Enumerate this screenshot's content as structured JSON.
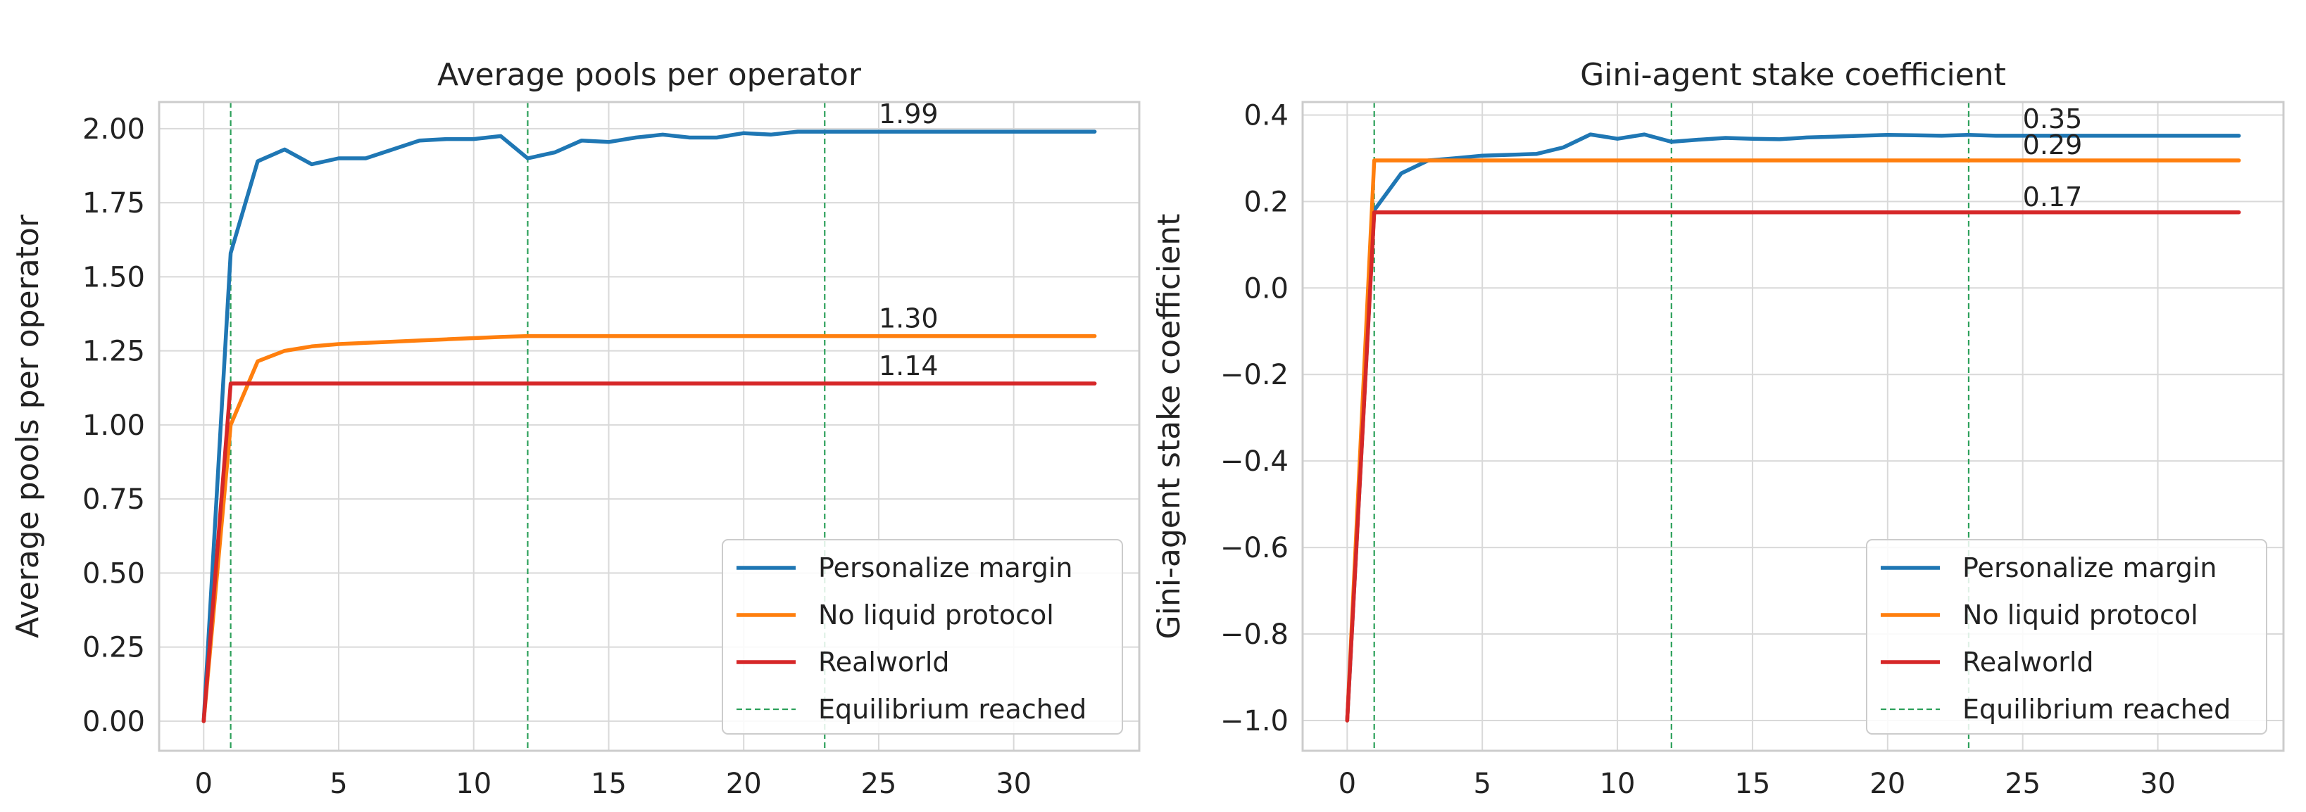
{
  "chart_data": [
    {
      "type": "line",
      "title": "Average pools per operator",
      "xlabel": "",
      "ylabel": "Average pools per operator",
      "xlim": [
        -1.65,
        34.65
      ],
      "ylim": [
        -0.1,
        2.09
      ],
      "xticks": [
        0,
        5,
        10,
        15,
        20,
        25,
        30
      ],
      "xtick_labels": [
        "0",
        "5",
        "10",
        "15",
        "20",
        "25",
        "30"
      ],
      "yticks": [
        0,
        0.25,
        0.5,
        0.75,
        1.0,
        1.25,
        1.5,
        1.75,
        2.0
      ],
      "ytick_labels": [
        "0.00",
        "0.25",
        "0.50",
        "0.75",
        "1.00",
        "1.25",
        "1.50",
        "1.75",
        "2.00"
      ],
      "grid": true,
      "legend_position": "lower-right",
      "series": [
        {
          "name": "Personalize margin",
          "color": "#1f77b4",
          "x": [
            0,
            1,
            2,
            3,
            4,
            5,
            6,
            7,
            8,
            9,
            10,
            11,
            12,
            13,
            14,
            15,
            16,
            17,
            18,
            19,
            20,
            21,
            22,
            23,
            24,
            25,
            26,
            27,
            28,
            29,
            30,
            31,
            32,
            33
          ],
          "values": [
            0.0,
            1.58,
            1.89,
            1.93,
            1.88,
            1.9,
            1.9,
            1.93,
            1.96,
            1.965,
            1.965,
            1.975,
            1.9,
            1.92,
            1.96,
            1.955,
            1.97,
            1.98,
            1.97,
            1.97,
            1.985,
            1.98,
            1.99,
            1.99,
            1.99,
            1.99,
            1.99,
            1.99,
            1.99,
            1.99,
            1.99,
            1.99,
            1.99,
            1.99
          ]
        },
        {
          "name": "No liquid protocol",
          "color": "#ff7f0e",
          "x": [
            0,
            1,
            2,
            3,
            4,
            5,
            6,
            7,
            8,
            9,
            10,
            11,
            12,
            13,
            14,
            15,
            16,
            17,
            18,
            19,
            20,
            21,
            22,
            23,
            24,
            25,
            26,
            27,
            28,
            29,
            30,
            31,
            32,
            33
          ],
          "values": [
            0.0,
            1.0,
            1.215,
            1.25,
            1.265,
            1.273,
            1.277,
            1.281,
            1.285,
            1.289,
            1.293,
            1.297,
            1.3,
            1.3,
            1.3,
            1.3,
            1.3,
            1.3,
            1.3,
            1.3,
            1.3,
            1.3,
            1.3,
            1.3,
            1.3,
            1.3,
            1.3,
            1.3,
            1.3,
            1.3,
            1.3,
            1.3,
            1.3,
            1.3
          ]
        },
        {
          "name": "Realworld",
          "color": "#d62728",
          "x": [
            0,
            1,
            2,
            3,
            4,
            5,
            6,
            7,
            8,
            9,
            10,
            11,
            12,
            13,
            14,
            15,
            16,
            17,
            18,
            19,
            20,
            21,
            22,
            23,
            24,
            25,
            26,
            27,
            28,
            29,
            30,
            31,
            32,
            33
          ],
          "values": [
            0.0,
            1.14,
            1.14,
            1.14,
            1.14,
            1.14,
            1.14,
            1.14,
            1.14,
            1.14,
            1.14,
            1.14,
            1.14,
            1.14,
            1.14,
            1.14,
            1.14,
            1.14,
            1.14,
            1.14,
            1.14,
            1.14,
            1.14,
            1.14,
            1.14,
            1.14,
            1.14,
            1.14,
            1.14,
            1.14,
            1.14,
            1.14,
            1.14,
            1.14
          ]
        }
      ],
      "vlines": {
        "name": "Equilibrium reached",
        "color": "#2ca05a",
        "x": [
          1,
          12,
          23
        ]
      },
      "annotations": [
        {
          "x": 25,
          "y": 1.99,
          "text": "1.99"
        },
        {
          "x": 25,
          "y": 1.3,
          "text": "1.30"
        },
        {
          "x": 25,
          "y": 1.14,
          "text": "1.14"
        }
      ]
    },
    {
      "type": "line",
      "title": "Gini-agent stake coefficient",
      "xlabel": "",
      "ylabel": "Gini-agent stake coefficient",
      "xlim": [
        -1.65,
        34.65
      ],
      "ylim": [
        -1.07,
        0.43
      ],
      "xticks": [
        0,
        5,
        10,
        15,
        20,
        25,
        30
      ],
      "xtick_labels": [
        "0",
        "5",
        "10",
        "15",
        "20",
        "25",
        "30"
      ],
      "yticks": [
        -1.0,
        -0.8,
        -0.6,
        -0.4,
        -0.2,
        0.0,
        0.2,
        0.4
      ],
      "ytick_labels": [
        "−1.0",
        "−0.8",
        "−0.6",
        "−0.4",
        "−0.2",
        "0.0",
        "0.2",
        "0.4"
      ],
      "grid": true,
      "legend_position": "lower-right",
      "series": [
        {
          "name": "Personalize margin",
          "color": "#1f77b4",
          "x": [
            0,
            1,
            2,
            3,
            4,
            5,
            6,
            7,
            8,
            9,
            10,
            11,
            12,
            13,
            14,
            15,
            16,
            17,
            18,
            19,
            20,
            21,
            22,
            23,
            24,
            25,
            26,
            27,
            28,
            29,
            30,
            31,
            32,
            33
          ],
          "values": [
            -1.0,
            0.18,
            0.265,
            0.295,
            0.3,
            0.306,
            0.308,
            0.31,
            0.325,
            0.355,
            0.345,
            0.355,
            0.338,
            0.343,
            0.347,
            0.345,
            0.344,
            0.348,
            0.35,
            0.352,
            0.354,
            0.353,
            0.352,
            0.354,
            0.352,
            0.352,
            0.352,
            0.352,
            0.352,
            0.352,
            0.352,
            0.352,
            0.352,
            0.352
          ]
        },
        {
          "name": "No liquid protocol",
          "color": "#ff7f0e",
          "x": [
            0,
            1,
            2,
            3,
            4,
            5,
            6,
            7,
            8,
            9,
            10,
            11,
            12,
            13,
            14,
            15,
            16,
            17,
            18,
            19,
            20,
            21,
            22,
            23,
            24,
            25,
            26,
            27,
            28,
            29,
            30,
            31,
            32,
            33
          ],
          "values": [
            -1.0,
            0.295,
            0.295,
            0.295,
            0.295,
            0.295,
            0.295,
            0.295,
            0.295,
            0.295,
            0.295,
            0.295,
            0.295,
            0.295,
            0.295,
            0.295,
            0.295,
            0.295,
            0.295,
            0.295,
            0.295,
            0.295,
            0.295,
            0.295,
            0.295,
            0.295,
            0.295,
            0.295,
            0.295,
            0.295,
            0.295,
            0.295,
            0.295,
            0.295
          ]
        },
        {
          "name": "Realworld",
          "color": "#d62728",
          "x": [
            0,
            1,
            2,
            3,
            4,
            5,
            6,
            7,
            8,
            9,
            10,
            11,
            12,
            13,
            14,
            15,
            16,
            17,
            18,
            19,
            20,
            21,
            22,
            23,
            24,
            25,
            26,
            27,
            28,
            29,
            30,
            31,
            32,
            33
          ],
          "values": [
            -1.0,
            0.175,
            0.175,
            0.175,
            0.175,
            0.175,
            0.175,
            0.175,
            0.175,
            0.175,
            0.175,
            0.175,
            0.175,
            0.175,
            0.175,
            0.175,
            0.175,
            0.175,
            0.175,
            0.175,
            0.175,
            0.175,
            0.175,
            0.175,
            0.175,
            0.175,
            0.175,
            0.175,
            0.175,
            0.175,
            0.175,
            0.175,
            0.175,
            0.175
          ]
        }
      ],
      "vlines": {
        "name": "Equilibrium reached",
        "color": "#2ca05a",
        "x": [
          1,
          12,
          23
        ]
      },
      "annotations": [
        {
          "x": 25,
          "y": 0.35,
          "text": "0.35"
        },
        {
          "x": 25,
          "y": 0.29,
          "text": "0.29"
        },
        {
          "x": 25,
          "y": 0.17,
          "text": "0.17"
        }
      ]
    }
  ]
}
